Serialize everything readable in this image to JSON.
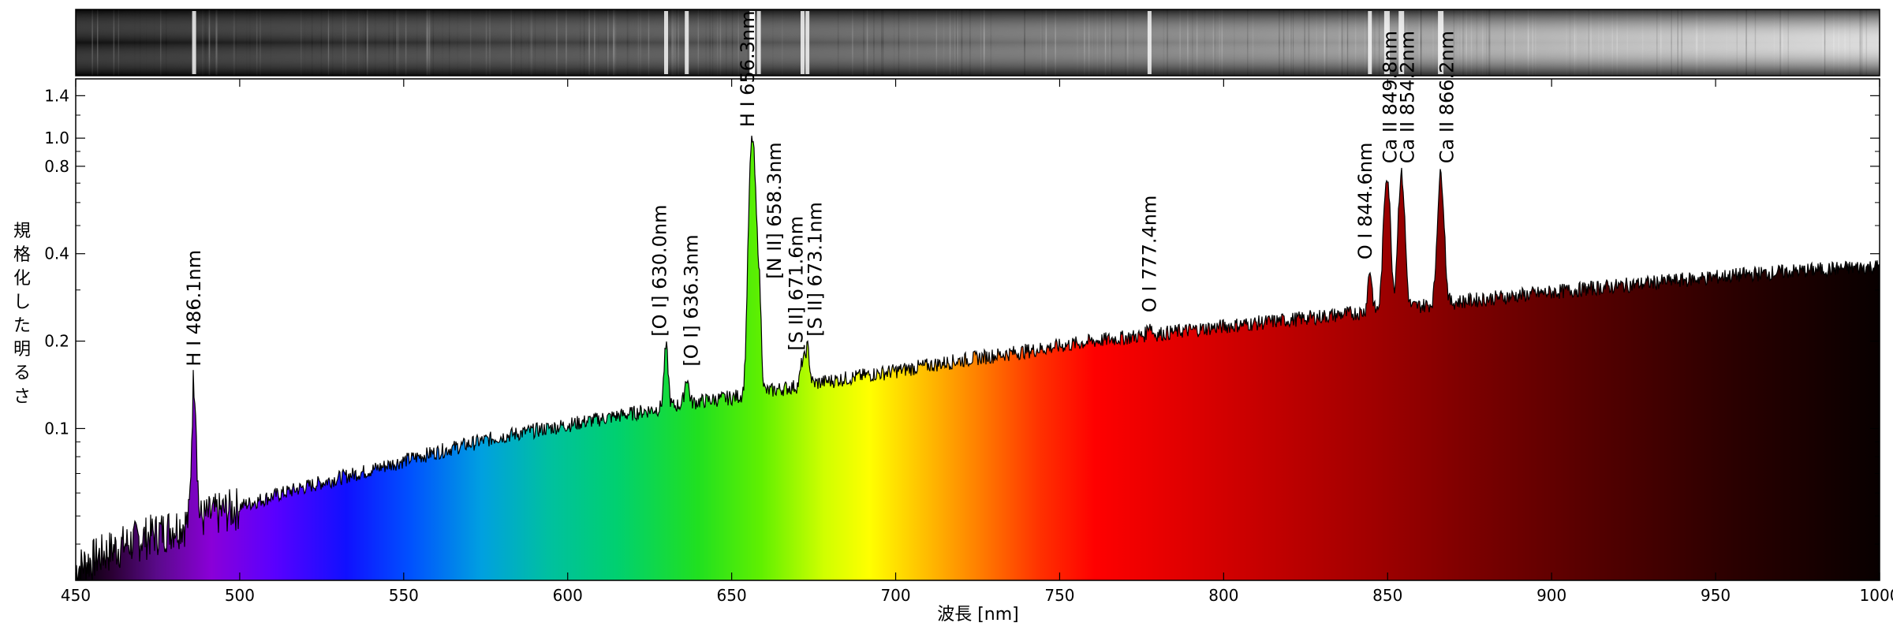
{
  "chart_data": {
    "type": "area",
    "title": "",
    "xlabel": "波長 [nm]",
    "ylabel": "規格化した明るさ",
    "xlim": [
      450,
      1000
    ],
    "ylim": [
      0.03,
      1.6
    ],
    "y_scale": "log",
    "grid": false,
    "legend": "none",
    "x_ticks": [
      450,
      500,
      550,
      600,
      650,
      700,
      750,
      800,
      850,
      900,
      950,
      1000
    ],
    "x_tick_labels": [
      "450",
      "500",
      "550",
      "600",
      "650",
      "700",
      "750",
      "800",
      "850",
      "900",
      "950",
      "1000"
    ],
    "y_ticks": [
      0.1,
      0.2,
      0.4,
      0.8,
      1.0,
      1.4
    ],
    "y_tick_labels": [
      "0.1",
      "0.2",
      "0.4",
      "0.8",
      "1.0",
      "1.4"
    ],
    "continuum": {
      "x": [
        450,
        460,
        470,
        480,
        490,
        500,
        520,
        540,
        560,
        580,
        600,
        620,
        640,
        650,
        660,
        680,
        700,
        720,
        740,
        760,
        780,
        800,
        820,
        840,
        860,
        880,
        900,
        920,
        940,
        960,
        980,
        1000
      ],
      "y": [
        0.033,
        0.038,
        0.042,
        0.046,
        0.05,
        0.054,
        0.063,
        0.072,
        0.083,
        0.094,
        0.103,
        0.113,
        0.124,
        0.128,
        0.134,
        0.146,
        0.158,
        0.172,
        0.185,
        0.2,
        0.212,
        0.225,
        0.237,
        0.25,
        0.265,
        0.28,
        0.295,
        0.31,
        0.325,
        0.34,
        0.352,
        0.362
      ]
    },
    "lines": [
      {
        "wavelength": 486.1,
        "peak": 0.15,
        "label": "H I 486.1nm"
      },
      {
        "wavelength": 630.0,
        "peak": 0.19,
        "label": "[O I] 630.0nm"
      },
      {
        "wavelength": 636.3,
        "peak": 0.15,
        "label": "[O I] 636.3nm"
      },
      {
        "wavelength": 656.3,
        "peak": 1.0,
        "label": "H I 656.3nm"
      },
      {
        "wavelength": 658.3,
        "peak": 0.3,
        "label": "[N II] 658.3nm"
      },
      {
        "wavelength": 671.6,
        "peak": 0.17,
        "label": "[S II] 671.6nm"
      },
      {
        "wavelength": 673.1,
        "peak": 0.19,
        "label": "[S II] 673.1nm"
      },
      {
        "wavelength": 777.4,
        "peak": 0.23,
        "label": "O I 777.4nm"
      },
      {
        "wavelength": 844.6,
        "peak": 0.35,
        "label": "O I 844.6nm"
      },
      {
        "wavelength": 849.8,
        "peak": 0.75,
        "label": "Ca II 849.8nm"
      },
      {
        "wavelength": 854.2,
        "peak": 0.75,
        "label": "Ca II 854.2nm"
      },
      {
        "wavelength": 866.2,
        "peak": 0.75,
        "label": "Ca II 866.2nm"
      }
    ]
  }
}
